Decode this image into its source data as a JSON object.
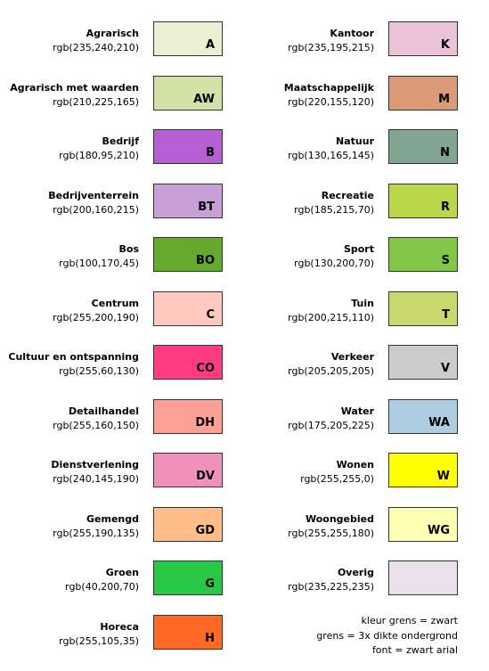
{
  "legend": {
    "left": [
      {
        "name": "Agrarisch",
        "rgb": "rgb(235,240,210)",
        "code": "A"
      },
      {
        "name": "Agrarisch met waarden",
        "rgb": "rgb(210,225,165)",
        "code": "AW"
      },
      {
        "name": "Bedrijf",
        "rgb": "rgb(180,95,210)",
        "code": "B"
      },
      {
        "name": "Bedrijventerrein",
        "rgb": "rgb(200,160,215)",
        "code": "BT"
      },
      {
        "name": "Bos",
        "rgb": "rgb(100,170,45)",
        "code": "BO"
      },
      {
        "name": "Centrum",
        "rgb": "rgb(255,200,190)",
        "code": "C"
      },
      {
        "name": "Cultuur en ontspanning",
        "rgb": "rgb(255,60,130)",
        "code": "CO"
      },
      {
        "name": "Detailhandel",
        "rgb": "rgb(255,160,150)",
        "code": "DH"
      },
      {
        "name": "Dienstverlening",
        "rgb": "rgb(240,145,190)",
        "code": "DV"
      },
      {
        "name": "Gemengd",
        "rgb": "rgb(255,190,135)",
        "code": "GD"
      },
      {
        "name": "Groen",
        "rgb": "rgb(40,200,70)",
        "code": "G"
      },
      {
        "name": "Horeca",
        "rgb": "rgb(255,105,35)",
        "code": "H"
      }
    ],
    "right": [
      {
        "name": "Kantoor",
        "rgb": "rgb(235,195,215)",
        "code": "K"
      },
      {
        "name": "Maatschappelijk",
        "rgb": "rgb(220,155,120)",
        "code": "M"
      },
      {
        "name": "Natuur",
        "rgb": "rgb(130,165,145)",
        "code": "N"
      },
      {
        "name": "Recreatie",
        "rgb": "rgb(185,215,70)",
        "code": "R"
      },
      {
        "name": "Sport",
        "rgb": "rgb(130,200,70)",
        "code": "S"
      },
      {
        "name": "Tuin",
        "rgb": "rgb(200,215,110)",
        "code": "T"
      },
      {
        "name": "Verkeer",
        "rgb": "rgb(205,205,205)",
        "code": "V"
      },
      {
        "name": "Water",
        "rgb": "rgb(175,205,225)",
        "code": "WA"
      },
      {
        "name": "Wonen",
        "rgb": "rgb(255,255,0)",
        "code": "W"
      },
      {
        "name": "Woongebied",
        "rgb": "rgb(255,255,180)",
        "code": "WG"
      },
      {
        "name": "Overig",
        "rgb": "rgb(235,225,235)",
        "code": ""
      }
    ],
    "notes": [
      "kleur grens = zwart",
      "grens = 3x dikte ondergrond",
      "font = zwart arial"
    ]
  }
}
